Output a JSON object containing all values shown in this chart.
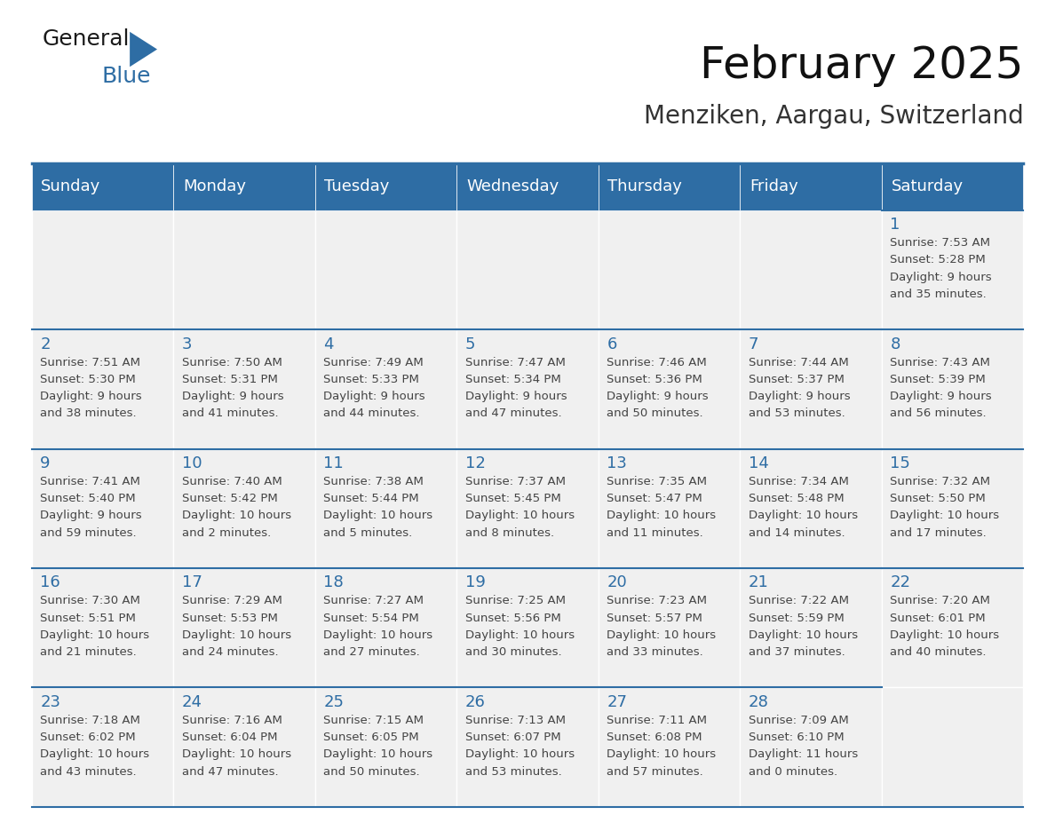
{
  "title": "February 2025",
  "subtitle": "Menziken, Aargau, Switzerland",
  "days_of_week": [
    "Sunday",
    "Monday",
    "Tuesday",
    "Wednesday",
    "Thursday",
    "Friday",
    "Saturday"
  ],
  "header_bg": "#2E6DA4",
  "header_text": "#FFFFFF",
  "cell_bg_light": "#F0F0F0",
  "border_color": "#2E6DA4",
  "day_number_color": "#2E6DA4",
  "text_color": "#444444",
  "calendar_data": [
    [
      null,
      null,
      null,
      null,
      null,
      null,
      {
        "day": 1,
        "sunrise": "7:53 AM",
        "sunset": "5:28 PM",
        "daylight": "9 hours and 35 minutes."
      }
    ],
    [
      {
        "day": 2,
        "sunrise": "7:51 AM",
        "sunset": "5:30 PM",
        "daylight": "9 hours and 38 minutes."
      },
      {
        "day": 3,
        "sunrise": "7:50 AM",
        "sunset": "5:31 PM",
        "daylight": "9 hours and 41 minutes."
      },
      {
        "day": 4,
        "sunrise": "7:49 AM",
        "sunset": "5:33 PM",
        "daylight": "9 hours and 44 minutes."
      },
      {
        "day": 5,
        "sunrise": "7:47 AM",
        "sunset": "5:34 PM",
        "daylight": "9 hours and 47 minutes."
      },
      {
        "day": 6,
        "sunrise": "7:46 AM",
        "sunset": "5:36 PM",
        "daylight": "9 hours and 50 minutes."
      },
      {
        "day": 7,
        "sunrise": "7:44 AM",
        "sunset": "5:37 PM",
        "daylight": "9 hours and 53 minutes."
      },
      {
        "day": 8,
        "sunrise": "7:43 AM",
        "sunset": "5:39 PM",
        "daylight": "9 hours and 56 minutes."
      }
    ],
    [
      {
        "day": 9,
        "sunrise": "7:41 AM",
        "sunset": "5:40 PM",
        "daylight": "9 hours and 59 minutes."
      },
      {
        "day": 10,
        "sunrise": "7:40 AM",
        "sunset": "5:42 PM",
        "daylight": "10 hours and 2 minutes."
      },
      {
        "day": 11,
        "sunrise": "7:38 AM",
        "sunset": "5:44 PM",
        "daylight": "10 hours and 5 minutes."
      },
      {
        "day": 12,
        "sunrise": "7:37 AM",
        "sunset": "5:45 PM",
        "daylight": "10 hours and 8 minutes."
      },
      {
        "day": 13,
        "sunrise": "7:35 AM",
        "sunset": "5:47 PM",
        "daylight": "10 hours and 11 minutes."
      },
      {
        "day": 14,
        "sunrise": "7:34 AM",
        "sunset": "5:48 PM",
        "daylight": "10 hours and 14 minutes."
      },
      {
        "day": 15,
        "sunrise": "7:32 AM",
        "sunset": "5:50 PM",
        "daylight": "10 hours and 17 minutes."
      }
    ],
    [
      {
        "day": 16,
        "sunrise": "7:30 AM",
        "sunset": "5:51 PM",
        "daylight": "10 hours and 21 minutes."
      },
      {
        "day": 17,
        "sunrise": "7:29 AM",
        "sunset": "5:53 PM",
        "daylight": "10 hours and 24 minutes."
      },
      {
        "day": 18,
        "sunrise": "7:27 AM",
        "sunset": "5:54 PM",
        "daylight": "10 hours and 27 minutes."
      },
      {
        "day": 19,
        "sunrise": "7:25 AM",
        "sunset": "5:56 PM",
        "daylight": "10 hours and 30 minutes."
      },
      {
        "day": 20,
        "sunrise": "7:23 AM",
        "sunset": "5:57 PM",
        "daylight": "10 hours and 33 minutes."
      },
      {
        "day": 21,
        "sunrise": "7:22 AM",
        "sunset": "5:59 PM",
        "daylight": "10 hours and 37 minutes."
      },
      {
        "day": 22,
        "sunrise": "7:20 AM",
        "sunset": "6:01 PM",
        "daylight": "10 hours and 40 minutes."
      }
    ],
    [
      {
        "day": 23,
        "sunrise": "7:18 AM",
        "sunset": "6:02 PM",
        "daylight": "10 hours and 43 minutes."
      },
      {
        "day": 24,
        "sunrise": "7:16 AM",
        "sunset": "6:04 PM",
        "daylight": "10 hours and 47 minutes."
      },
      {
        "day": 25,
        "sunrise": "7:15 AM",
        "sunset": "6:05 PM",
        "daylight": "10 hours and 50 minutes."
      },
      {
        "day": 26,
        "sunrise": "7:13 AM",
        "sunset": "6:07 PM",
        "daylight": "10 hours and 53 minutes."
      },
      {
        "day": 27,
        "sunrise": "7:11 AM",
        "sunset": "6:08 PM",
        "daylight": "10 hours and 57 minutes."
      },
      {
        "day": 28,
        "sunrise": "7:09 AM",
        "sunset": "6:10 PM",
        "daylight": "11 hours and 0 minutes."
      },
      null
    ]
  ],
  "logo_text1": "General",
  "logo_text2": "Blue",
  "title_fontsize": 36,
  "subtitle_fontsize": 20,
  "header_fontsize": 13,
  "day_num_fontsize": 13,
  "cell_text_fontsize": 9.5,
  "logo_fontsize": 18
}
